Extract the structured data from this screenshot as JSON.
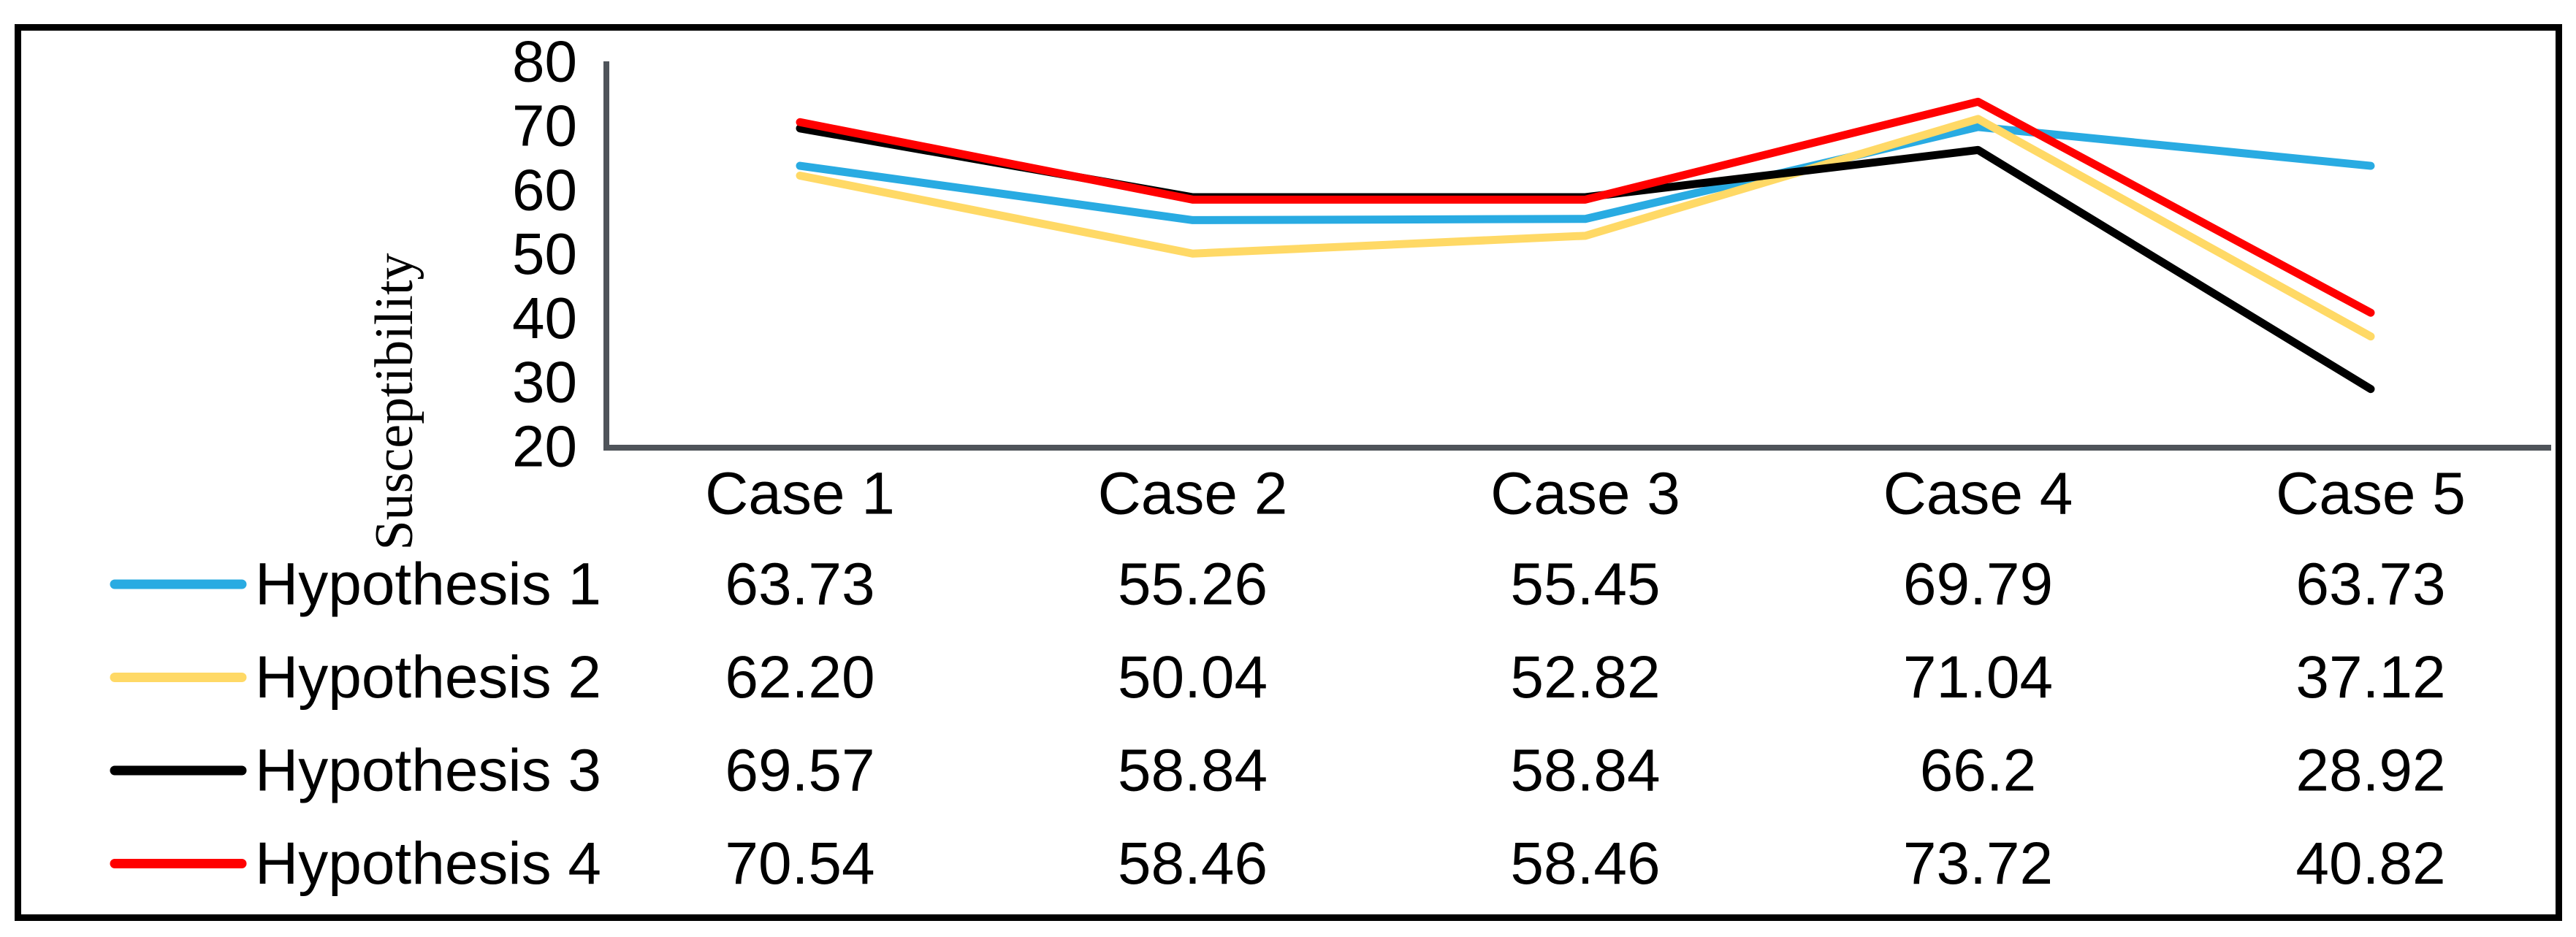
{
  "chart_data": {
    "type": "line",
    "title": "",
    "xlabel": "",
    "ylabel": "Susceptibility",
    "ylim": [
      20,
      80
    ],
    "yticks": [
      80,
      70,
      60,
      50,
      40,
      30,
      20
    ],
    "grid": false,
    "legend_position": "left-of-table-rows",
    "categories": [
      "Case 1",
      "Case 2",
      "Case 3",
      "Case 4",
      "Case 5"
    ],
    "series": [
      {
        "name": "Hypothesis 1",
        "color": "#29ABE2",
        "values": [
          63.73,
          55.26,
          55.45,
          69.79,
          63.73
        ],
        "display_values": [
          "63.73",
          "55.26",
          "55.45",
          "69.79",
          "63.73"
        ]
      },
      {
        "name": "Hypothesis 2",
        "color": "#FFD966",
        "values": [
          62.2,
          50.04,
          52.82,
          71.04,
          37.12
        ],
        "display_values": [
          "62.20",
          "50.04",
          "52.82",
          "71.04",
          "37.12"
        ]
      },
      {
        "name": "Hypothesis 3",
        "color": "#000000",
        "values": [
          69.57,
          58.84,
          58.84,
          66.2,
          28.92
        ],
        "display_values": [
          "69.57",
          "58.84",
          "58.84",
          "66.2",
          "28.92"
        ]
      },
      {
        "name": "Hypothesis 4",
        "color": "#FF0000",
        "values": [
          70.54,
          58.46,
          58.46,
          73.72,
          40.82
        ],
        "display_values": [
          "70.54",
          "58.46",
          "58.46",
          "73.72",
          "40.82"
        ]
      }
    ],
    "axis_color": "#4f545a"
  }
}
